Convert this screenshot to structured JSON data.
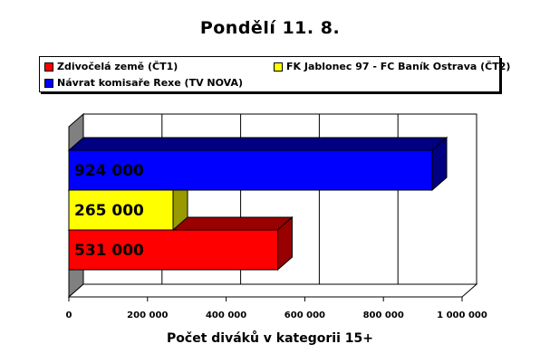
{
  "chart_data": {
    "type": "bar",
    "orientation": "horizontal",
    "title": "Pondělí 11. 8.",
    "xlabel": "Počet diváků v kategorii 15+",
    "ylabel": "",
    "xlim": [
      0,
      1000000
    ],
    "x_ticks": [
      "0",
      "200 000",
      "400 000",
      "600 000",
      "800 000",
      "1 000 000"
    ],
    "grid": true,
    "legend_position": "top",
    "series": [
      {
        "name": "Zdivočelá země (ČT1)",
        "value": 531000,
        "label": "531 000",
        "color": "#ff0000",
        "side_color": "#990000"
      },
      {
        "name": "FK Jablonec 97 - FC Baník Ostrava (ČT2)",
        "value": 265000,
        "label": "265 000",
        "color": "#ffff00",
        "side_color": "#999900"
      },
      {
        "name": "Návrat komisaře Rexe (TV NOVA)",
        "value": 924000,
        "label": "924 000",
        "color": "#0000ff",
        "side_color": "#000080"
      }
    ]
  }
}
